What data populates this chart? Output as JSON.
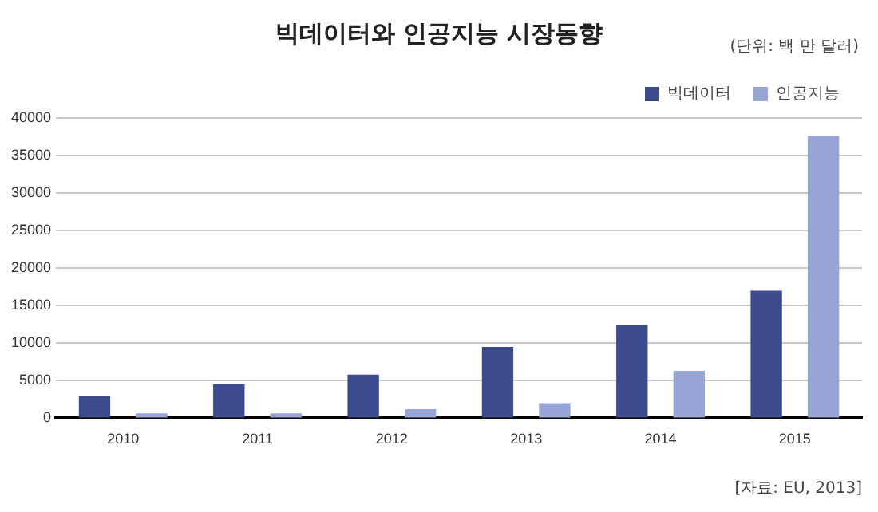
{
  "chart_data": {
    "type": "bar",
    "title": "빅데이터와 인공지능 시장동향",
    "subtitle": "(단위: 백 만 달러)",
    "categories": [
      "2010",
      "2011",
      "2012",
      "2013",
      "2014",
      "2015"
    ],
    "series": [
      {
        "name": "빅데이터",
        "color": "#3c4a8e",
        "values": [
          3000,
          4500,
          5800,
          9500,
          12400,
          17000
        ]
      },
      {
        "name": "인공지능",
        "color": "#97a5d6",
        "values": [
          650,
          650,
          1200,
          2000,
          6300,
          37600
        ]
      }
    ],
    "ylim": [
      0,
      40000
    ],
    "yticks": [
      0,
      5000,
      10000,
      15000,
      20000,
      25000,
      30000,
      35000,
      40000
    ],
    "grid": "y",
    "legend": "top right",
    "annotations": [
      "[자료: EU, 2013]"
    ]
  }
}
